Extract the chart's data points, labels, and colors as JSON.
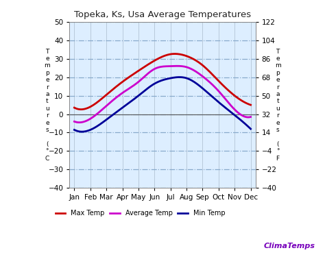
{
  "title": "Topeka, Ks, Usa Average Temperatures",
  "months": [
    "Jan",
    "Feb",
    "Mar",
    "Apr",
    "May",
    "Jun",
    "Jul",
    "Aug",
    "Sep",
    "Oct",
    "Nov",
    "Dec"
  ],
  "max_temp": [
    3.5,
    4.0,
    10.5,
    17.5,
    23.5,
    29.0,
    32.5,
    31.5,
    26.5,
    18.0,
    10.0,
    5.0
  ],
  "avg_temp": [
    -4.0,
    -2.5,
    4.5,
    11.5,
    17.5,
    24.5,
    26.0,
    25.5,
    20.5,
    12.5,
    2.5,
    -1.5
  ],
  "min_temp": [
    -8.5,
    -8.5,
    -3.0,
    3.5,
    10.0,
    16.5,
    19.5,
    19.5,
    14.0,
    6.5,
    -0.5,
    -8.0
  ],
  "max_color": "#cc0000",
  "avg_color": "#cc00cc",
  "min_color": "#000099",
  "ylim_left": [
    -40,
    50
  ],
  "ylim_right": [
    -40.0,
    122.0
  ],
  "yticks_left": [
    -40,
    -30,
    -20,
    -10,
    0,
    10,
    20,
    30,
    40,
    50
  ],
  "yticks_right": [
    -40.0,
    -22.0,
    -4.0,
    14.0,
    32.0,
    50.0,
    68.0,
    86.0,
    104.0,
    122.0
  ],
  "grid_h_color": "#88aacc",
  "grid_v_color": "#aabbcc",
  "bg_color": "#ffffff",
  "plot_bg_color": "#ddeeff",
  "legend_entries": [
    "Max Temp",
    "Average Temp",
    "Min Temp"
  ],
  "watermark": "ClimaTemps",
  "watermark_color": "#7700bb"
}
